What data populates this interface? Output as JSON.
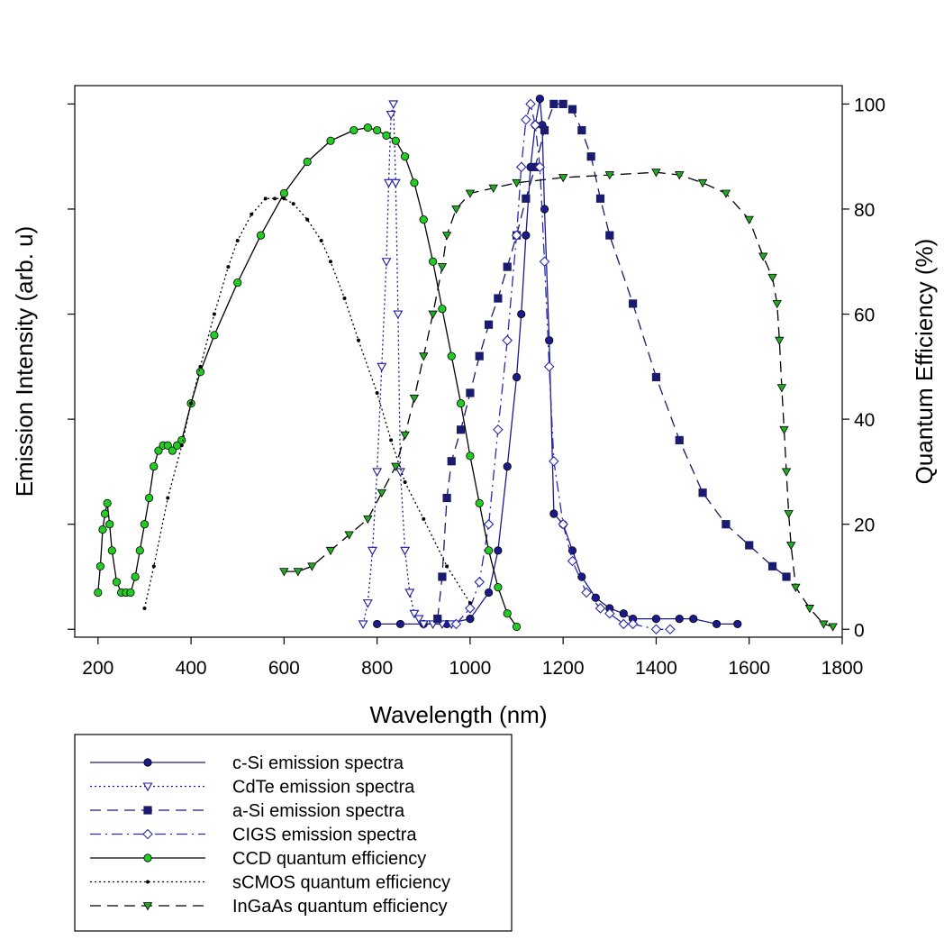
{
  "chart_data": {
    "type": "line",
    "xlabel": "Wavelength (nm)",
    "ylabel_left": "Emission Intensity (arb. u)",
    "ylabel_right": "Quantum Efficiency (%)",
    "xlim": [
      150,
      1800
    ],
    "ylim_right": [
      -1.5,
      103.5
    ],
    "x_ticks": [
      "200",
      "400",
      "600",
      "800",
      "1000",
      "1200",
      "1400",
      "1600",
      "1800"
    ],
    "y_right_ticks": [
      "0",
      "20",
      "40",
      "60",
      "80",
      "100"
    ],
    "grid": false,
    "legend_position": "bottom-left",
    "series": [
      {
        "name": "c-Si emission spectra",
        "color": "#1a1a8c",
        "line": "solid",
        "marker": "filled-circle",
        "x": [
          800,
          850,
          900,
          950,
          1000,
          1040,
          1060,
          1080,
          1100,
          1110,
          1120,
          1130,
          1140,
          1150,
          1155,
          1160,
          1170,
          1180,
          1200,
          1220,
          1240,
          1270,
          1300,
          1330,
          1350,
          1400,
          1450,
          1480,
          1530,
          1575
        ],
        "y": [
          1,
          1,
          1,
          1,
          2,
          7,
          15,
          31,
          48,
          60,
          75,
          88,
          96,
          101,
          96,
          80,
          55,
          22,
          20,
          15,
          10,
          6,
          4,
          3,
          2,
          2,
          2,
          2,
          1,
          1
        ]
      },
      {
        "name": "CdTe emission spectra",
        "color": "#1a1aa0",
        "line": "dotted",
        "marker": "open-triangle-down",
        "x": [
          770,
          780,
          790,
          800,
          810,
          820,
          825,
          830,
          835,
          840,
          845,
          850,
          860,
          870,
          880,
          890,
          900,
          920,
          940,
          960
        ],
        "y": [
          1,
          5,
          15,
          30,
          50,
          70,
          85,
          98,
          100,
          85,
          60,
          30,
          15,
          7,
          3,
          2,
          1,
          1,
          1,
          1
        ]
      },
      {
        "name": "a-Si emission spectra",
        "color": "#1a1a6e",
        "line": "dashed",
        "marker": "filled-square",
        "x": [
          930,
          940,
          950,
          960,
          980,
          1000,
          1020,
          1040,
          1060,
          1080,
          1100,
          1120,
          1140,
          1160,
          1180,
          1200,
          1220,
          1240,
          1260,
          1280,
          1300,
          1350,
          1400,
          1450,
          1500,
          1550,
          1600,
          1650,
          1680
        ],
        "y": [
          2,
          10,
          25,
          32,
          38,
          45,
          52,
          58,
          63,
          69,
          75,
          82,
          88,
          95,
          100,
          100,
          99,
          95,
          90,
          82,
          75,
          62,
          48,
          36,
          26,
          20,
          16,
          12,
          10
        ]
      },
      {
        "name": "CIGS emission spectra",
        "color": "#2a2ab0",
        "line": "dashdot",
        "marker": "open-diamond",
        "x": [
          970,
          1000,
          1020,
          1040,
          1060,
          1080,
          1100,
          1110,
          1120,
          1130,
          1140,
          1150,
          1160,
          1170,
          1180,
          1200,
          1220,
          1250,
          1280,
          1300,
          1330,
          1350,
          1400,
          1430
        ],
        "y": [
          1,
          4,
          9,
          20,
          38,
          55,
          75,
          88,
          97,
          100,
          96,
          88,
          70,
          50,
          32,
          20,
          13,
          7,
          4,
          3,
          1,
          1,
          0,
          0
        ]
      },
      {
        "name": "CCD quantum efficiency",
        "color": "#22cc22",
        "line": "solid",
        "marker": "filled-circle",
        "x": [
          200,
          205,
          210,
          215,
          220,
          225,
          230,
          240,
          250,
          260,
          270,
          280,
          290,
          300,
          310,
          320,
          330,
          340,
          350,
          360,
          370,
          380,
          400,
          420,
          450,
          500,
          550,
          600,
          650,
          700,
          750,
          780,
          800,
          820,
          840,
          860,
          880,
          900,
          920,
          940,
          960,
          980,
          1000,
          1020,
          1040,
          1060,
          1080,
          1100
        ],
        "y": [
          7,
          12,
          19,
          22,
          24,
          20,
          15,
          9,
          7,
          7,
          7,
          10,
          15,
          20,
          25,
          31,
          34,
          35,
          35,
          34,
          35,
          36,
          43,
          49,
          56,
          66,
          75,
          83,
          89,
          93,
          95,
          95.5,
          95,
          94,
          93,
          90,
          85,
          78,
          70,
          61,
          52,
          43,
          33,
          24,
          15,
          8,
          3,
          0.5
        ]
      },
      {
        "name": "sCMOS quantum efficiency",
        "color": "#000000",
        "line": "dotted",
        "marker": "small-dot",
        "x": [
          300,
          320,
          350,
          380,
          400,
          420,
          450,
          480,
          500,
          530,
          560,
          580,
          600,
          620,
          650,
          680,
          700,
          730,
          760,
          800,
          830,
          860,
          900,
          950,
          1000
        ],
        "y": [
          4,
          12,
          25,
          35,
          43,
          50,
          60,
          69,
          74,
          79,
          82,
          82,
          82,
          81,
          78,
          74,
          70,
          63,
          55,
          45,
          36,
          28,
          21,
          12,
          5
        ]
      },
      {
        "name": "InGaAs quantum efficiency",
        "color": "#22aa22",
        "line": "dashed",
        "marker": "filled-triangle-down",
        "x": [
          600,
          630,
          660,
          700,
          740,
          780,
          810,
          840,
          860,
          880,
          900,
          920,
          940,
          950,
          970,
          1000,
          1050,
          1100,
          1200,
          1300,
          1400,
          1450,
          1500,
          1550,
          1600,
          1630,
          1650,
          1660,
          1665,
          1670,
          1675,
          1680,
          1685,
          1690,
          1700,
          1730,
          1760,
          1780
        ],
        "y": [
          11,
          11,
          12,
          15,
          18,
          21,
          26,
          31,
          37,
          44,
          52,
          60,
          69,
          75,
          80,
          83,
          84,
          85,
          86,
          86.5,
          87,
          86.5,
          85,
          83,
          78,
          71,
          67,
          62,
          55,
          46,
          38,
          30,
          22,
          16,
          8,
          4,
          1,
          0.5
        ]
      }
    ]
  }
}
